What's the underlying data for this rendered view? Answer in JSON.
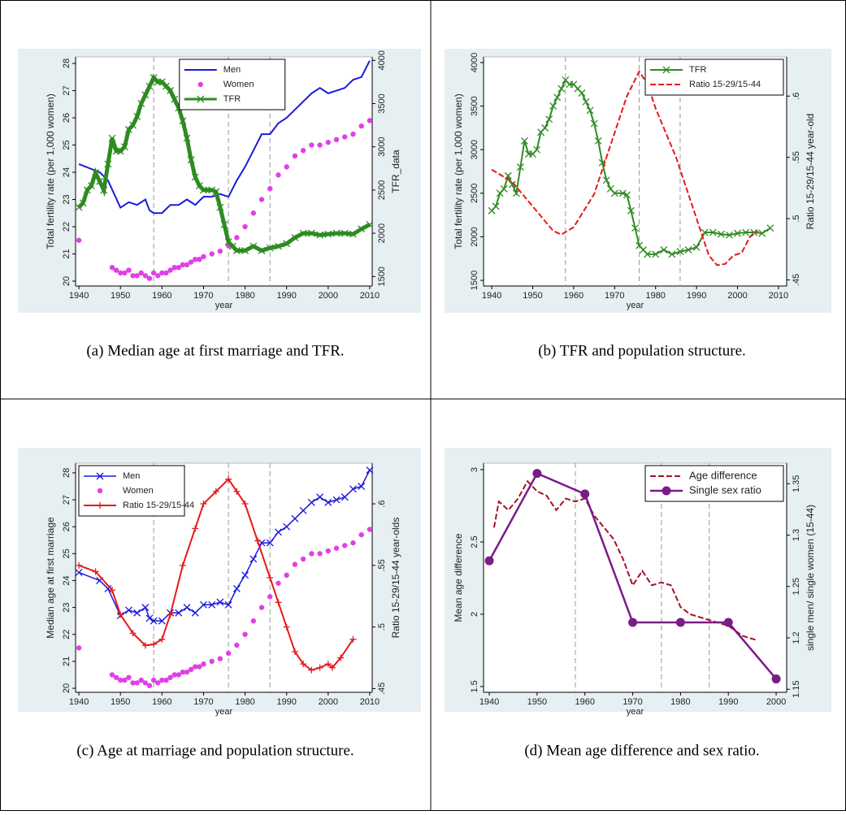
{
  "chart_data": [
    {
      "type": "line",
      "caption": "(a) Median age at first marriage and TFR.",
      "xlabel": "year",
      "ylabel": "Total fertility rate (per 1,000 women)",
      "y2label": "TFR_data",
      "xlim": [
        1939.2,
        2010.6
      ],
      "xticks": [
        1940,
        1950,
        1960,
        1970,
        1980,
        1990,
        2000,
        2010
      ],
      "ylim": [
        19.82,
        28.24
      ],
      "yticks": [
        20,
        21,
        22,
        23,
        24,
        25,
        26,
        27,
        28
      ],
      "y2lim": [
        1390,
        4040
      ],
      "y2ticks": [
        1500,
        2000,
        2500,
        3000,
        3500,
        4000
      ],
      "vlines": [
        1958,
        1976,
        1986
      ],
      "legend": "top",
      "series": [
        {
          "name": "Men",
          "color": "#1a1adc",
          "style": "solid",
          "width": 2,
          "marker": null,
          "x": [
            1940,
            1945,
            1947,
            1950,
            1952,
            1954,
            1956,
            1957,
            1958,
            1960,
            1962,
            1964,
            1966,
            1968,
            1970,
            1972,
            1974,
            1976,
            1978,
            1980,
            1982,
            1984,
            1986,
            1988,
            1990,
            1992,
            1994,
            1996,
            1998,
            2000,
            2002,
            2004,
            2006,
            2008,
            2010
          ],
          "values": [
            24.3,
            24.0,
            23.7,
            22.7,
            22.9,
            22.8,
            23.0,
            22.6,
            22.5,
            22.5,
            22.8,
            22.8,
            23.0,
            22.8,
            23.1,
            23.1,
            23.2,
            23.1,
            23.7,
            24.2,
            24.8,
            25.4,
            25.4,
            25.8,
            26.0,
            26.3,
            26.6,
            26.9,
            27.1,
            26.9,
            27.0,
            27.1,
            27.4,
            27.5,
            28.1
          ]
        },
        {
          "name": "Women",
          "color": "#e040e8",
          "style": "none",
          "width": 0,
          "marker": "dot",
          "x": [
            1940,
            1948,
            1949,
            1950,
            1951,
            1952,
            1953,
            1954,
            1955,
            1956,
            1957,
            1958,
            1959,
            1960,
            1961,
            1962,
            1963,
            1964,
            1965,
            1966,
            1967,
            1968,
            1969,
            1970,
            1972,
            1974,
            1976,
            1978,
            1980,
            1982,
            1984,
            1986,
            1988,
            1990,
            1992,
            1994,
            1996,
            1998,
            2000,
            2002,
            2004,
            2006,
            2008,
            2010
          ],
          "values": [
            21.5,
            20.5,
            20.4,
            20.3,
            20.3,
            20.4,
            20.2,
            20.2,
            20.3,
            20.2,
            20.1,
            20.3,
            20.2,
            20.3,
            20.3,
            20.4,
            20.5,
            20.5,
            20.6,
            20.6,
            20.7,
            20.8,
            20.8,
            20.9,
            21.0,
            21.1,
            21.3,
            21.6,
            22.0,
            22.5,
            23.0,
            23.4,
            23.9,
            24.2,
            24.6,
            24.8,
            25.0,
            25.0,
            25.1,
            25.2,
            25.3,
            25.4,
            25.7,
            25.9
          ]
        },
        {
          "name": "TFR",
          "color": "#2e8b22",
          "style": "solid",
          "width": 5,
          "marker": "x",
          "axis": "y2",
          "x": [
            1940,
            1941,
            1942,
            1943,
            1944,
            1945,
            1946,
            1947,
            1948,
            1949,
            1950,
            1951,
            1952,
            1953,
            1954,
            1955,
            1956,
            1957,
            1958,
            1959,
            1960,
            1961,
            1962,
            1963,
            1964,
            1965,
            1966,
            1967,
            1968,
            1969,
            1970,
            1972,
            1973,
            1974,
            1975,
            1976,
            1977,
            1978,
            1980,
            1982,
            1984,
            1986,
            1988,
            1990,
            1992,
            1994,
            1996,
            1998,
            2000,
            2002,
            2004,
            2006,
            2008,
            2010
          ],
          "values": [
            2300,
            2350,
            2500,
            2550,
            2700,
            2600,
            2500,
            2800,
            3100,
            2950,
            2950,
            3000,
            3200,
            3250,
            3350,
            3500,
            3600,
            3700,
            3800,
            3750,
            3750,
            3700,
            3650,
            3550,
            3450,
            3300,
            3100,
            2850,
            2650,
            2550,
            2500,
            2500,
            2480,
            2300,
            2100,
            1900,
            1850,
            1800,
            1800,
            1850,
            1800,
            1830,
            1850,
            1880,
            1950,
            2000,
            2000,
            1980,
            1990,
            2000,
            2000,
            1990,
            2050,
            2100
          ]
        }
      ]
    },
    {
      "type": "line",
      "caption": "(b) TFR and population structure.",
      "xlabel": "year",
      "ylabel": "Total fertility rate (per 1,000 women)",
      "y2label": "Ratio 15-29/15-44 year-old",
      "xlim": [
        1938,
        2012
      ],
      "xticks": [
        1940,
        1950,
        1960,
        1970,
        1980,
        1990,
        2000,
        2010
      ],
      "ylim": [
        1435,
        4065
      ],
      "yticks": [
        1500,
        2000,
        2500,
        3000,
        3500,
        4000
      ],
      "y2lim": [
        0.445,
        0.632
      ],
      "y2ticks": [
        {
          "value": 0.45,
          "label": ".45"
        },
        {
          "value": 0.5,
          "label": ".5"
        },
        {
          "value": 0.55,
          "label": ".55"
        },
        {
          "value": 0.6,
          "label": ".6"
        }
      ],
      "vlines": [
        1958,
        1976,
        1986
      ],
      "legend": "top-right",
      "series": [
        {
          "name": "TFR",
          "color": "#2e8b22",
          "style": "solid",
          "width": 2,
          "marker": "x",
          "x": [
            1940,
            1941,
            1942,
            1943,
            1944,
            1945,
            1946,
            1947,
            1948,
            1949,
            1950,
            1951,
            1952,
            1953,
            1954,
            1955,
            1956,
            1957,
            1958,
            1959,
            1960,
            1961,
            1962,
            1963,
            1964,
            1965,
            1966,
            1967,
            1968,
            1969,
            1970,
            1972,
            1973,
            1974,
            1975,
            1976,
            1977,
            1978,
            1980,
            1982,
            1984,
            1986,
            1988,
            1990,
            1992,
            1994,
            1996,
            1998,
            2000,
            2002,
            2004,
            2006,
            2008
          ],
          "values": [
            2300,
            2350,
            2500,
            2550,
            2700,
            2600,
            2500,
            2800,
            3100,
            2950,
            2950,
            3000,
            3200,
            3250,
            3350,
            3500,
            3600,
            3700,
            3800,
            3750,
            3750,
            3700,
            3650,
            3550,
            3450,
            3300,
            3100,
            2850,
            2650,
            2550,
            2500,
            2500,
            2480,
            2300,
            2100,
            1900,
            1850,
            1800,
            1800,
            1850,
            1800,
            1830,
            1850,
            1880,
            2050,
            2050,
            2030,
            2020,
            2040,
            2050,
            2050,
            2040,
            2100
          ]
        },
        {
          "name": "Ratio 15-29/15-44",
          "color": "#e41a1c",
          "style": "dashed",
          "width": 2,
          "marker": null,
          "axis": "y2",
          "x": [
            1940,
            1945,
            1950,
            1955,
            1957,
            1960,
            1965,
            1970,
            1973,
            1976,
            1978,
            1980,
            1985,
            1990,
            1993,
            1995,
            1997,
            1999,
            2001,
            2003,
            2005
          ],
          "values": [
            0.54,
            0.53,
            0.51,
            0.49,
            0.487,
            0.493,
            0.52,
            0.57,
            0.6,
            0.62,
            0.61,
            0.59,
            0.55,
            0.5,
            0.47,
            0.462,
            0.463,
            0.47,
            0.472,
            0.485,
            0.49
          ]
        }
      ]
    },
    {
      "type": "line",
      "caption": "(c) Age at marriage and population structure.",
      "xlabel": "year",
      "ylabel": "Median age at first marriage",
      "y2label": "Ratio 15-29/15-44 year-olds",
      "xlim": [
        1939.2,
        2010.6
      ],
      "xticks": [
        1940,
        1950,
        1960,
        1970,
        1980,
        1990,
        2000,
        2010
      ],
      "ylim": [
        19.85,
        28.36
      ],
      "yticks": [
        20,
        21,
        22,
        23,
        24,
        25,
        26,
        27,
        28
      ],
      "y2lim": [
        0.447,
        0.633
      ],
      "y2ticks": [
        {
          "value": 0.45,
          "label": ".45"
        },
        {
          "value": 0.5,
          "label": ".5"
        },
        {
          "value": 0.55,
          "label": ".55"
        },
        {
          "value": 0.6,
          "label": ".6"
        }
      ],
      "vlines": [
        1958,
        1976,
        1986
      ],
      "legend": "top-left",
      "series": [
        {
          "name": "Men",
          "color": "#1a1adc",
          "style": "solid",
          "width": 1.5,
          "marker": "x",
          "x": [
            1940,
            1945,
            1947,
            1950,
            1952,
            1954,
            1956,
            1957,
            1958,
            1960,
            1962,
            1964,
            1966,
            1968,
            1970,
            1972,
            1974,
            1976,
            1978,
            1980,
            1982,
            1984,
            1986,
            1988,
            1990,
            1992,
            1994,
            1996,
            1998,
            2000,
            2002,
            2004,
            2006,
            2008,
            2010
          ],
          "values": [
            24.3,
            24.0,
            23.7,
            22.7,
            22.9,
            22.8,
            23.0,
            22.6,
            22.5,
            22.5,
            22.8,
            22.8,
            23.0,
            22.8,
            23.1,
            23.1,
            23.2,
            23.1,
            23.7,
            24.2,
            24.8,
            25.4,
            25.4,
            25.8,
            26.0,
            26.3,
            26.6,
            26.9,
            27.1,
            26.9,
            27.0,
            27.1,
            27.4,
            27.5,
            28.1
          ]
        },
        {
          "name": "Women",
          "color": "#e040e8",
          "style": "none",
          "width": 0,
          "marker": "dot",
          "x": [
            1940,
            1948,
            1949,
            1950,
            1951,
            1952,
            1953,
            1954,
            1955,
            1956,
            1957,
            1958,
            1959,
            1960,
            1961,
            1962,
            1963,
            1964,
            1965,
            1966,
            1967,
            1968,
            1969,
            1970,
            1972,
            1974,
            1976,
            1978,
            1980,
            1982,
            1984,
            1986,
            1988,
            1990,
            1992,
            1994,
            1996,
            1998,
            2000,
            2002,
            2004,
            2006,
            2008,
            2010
          ],
          "values": [
            21.5,
            20.5,
            20.4,
            20.3,
            20.3,
            20.4,
            20.2,
            20.2,
            20.3,
            20.2,
            20.1,
            20.3,
            20.2,
            20.3,
            20.3,
            20.4,
            20.5,
            20.5,
            20.6,
            20.6,
            20.7,
            20.8,
            20.8,
            20.9,
            21.0,
            21.1,
            21.3,
            21.6,
            22.0,
            22.5,
            23.0,
            23.4,
            23.9,
            24.2,
            24.6,
            24.8,
            25.0,
            25.0,
            25.1,
            25.2,
            25.3,
            25.4,
            25.7,
            25.9
          ]
        },
        {
          "name": "Ratio 15-29/15-44",
          "color": "#e41a1c",
          "style": "solid",
          "width": 2,
          "marker": "plus",
          "axis": "y2",
          "x": [
            1940,
            1944,
            1948,
            1950,
            1953,
            1956,
            1958,
            1960,
            1962,
            1965,
            1968,
            1970,
            1973,
            1976,
            1978,
            1980,
            1983,
            1986,
            1988,
            1990,
            1992,
            1994,
            1996,
            1998,
            2000,
            2001,
            2003,
            2006
          ],
          "values": [
            0.55,
            0.545,
            0.53,
            0.51,
            0.495,
            0.485,
            0.486,
            0.49,
            0.51,
            0.55,
            0.58,
            0.6,
            0.61,
            0.62,
            0.61,
            0.6,
            0.57,
            0.54,
            0.52,
            0.5,
            0.48,
            0.47,
            0.465,
            0.467,
            0.47,
            0.467,
            0.475,
            0.49
          ]
        }
      ]
    },
    {
      "type": "line",
      "caption": "(d) Mean age difference and sex ratio.",
      "xlabel": "year",
      "ylabel": "Mean age difference",
      "y2label": "single men/ single women (15-44)",
      "xlim": [
        1938.8,
        2002.2
      ],
      "xticks": [
        1940,
        1950,
        1960,
        1970,
        1980,
        1990,
        2000
      ],
      "ylim": [
        1.46,
        3.045
      ],
      "yticks": [
        1.5,
        2,
        2.5,
        3
      ],
      "y2lim": [
        1.147,
        1.37
      ],
      "y2ticks": [
        1.15,
        1.2,
        1.25,
        1.3,
        1.35
      ],
      "vlines": [
        1958,
        1976,
        1986
      ],
      "legend": "top-right",
      "series": [
        {
          "name": "Age difference",
          "color": "#a0142a",
          "style": "dashed",
          "width": 2,
          "marker": null,
          "x": [
            1941,
            1942,
            1944,
            1946,
            1948,
            1950,
            1952,
            1954,
            1956,
            1958,
            1960,
            1962,
            1964,
            1966,
            1968,
            1970,
            1972,
            1974,
            1976,
            1978,
            1980,
            1982,
            1985,
            1988,
            1990,
            1993,
            1996
          ],
          "values": [
            2.6,
            2.78,
            2.72,
            2.8,
            2.92,
            2.85,
            2.82,
            2.72,
            2.8,
            2.78,
            2.8,
            2.68,
            2.6,
            2.52,
            2.38,
            2.2,
            2.3,
            2.2,
            2.22,
            2.2,
            2.05,
            2.0,
            1.97,
            1.94,
            1.92,
            1.85,
            1.82
          ]
        },
        {
          "name": "Single sex ratio",
          "color": "#7b1b8a",
          "style": "solid",
          "width": 2.5,
          "marker": "circle",
          "axis": "y2",
          "x": [
            1940,
            1950,
            1960,
            1970,
            1980,
            1990,
            2000
          ],
          "values": [
            1.275,
            1.36,
            1.34,
            1.215,
            1.215,
            1.215,
            1.16
          ]
        }
      ]
    }
  ]
}
